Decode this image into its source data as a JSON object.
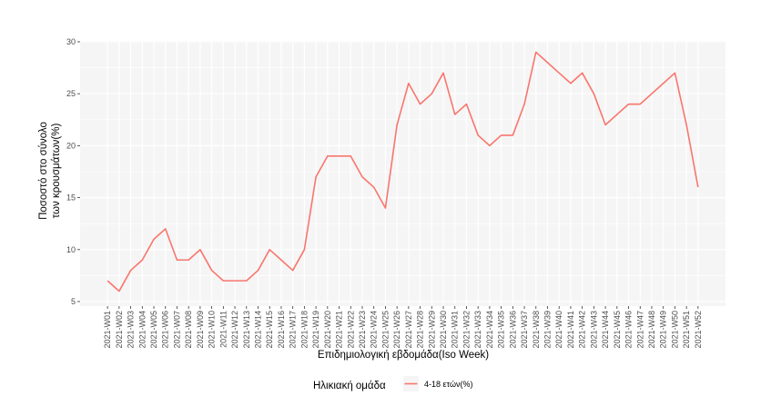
{
  "chart_data": {
    "type": "line",
    "title": "",
    "xlabel": "Επιδημιολογική εβδομάδα(Iso Week)",
    "ylabel_lines": [
      "Ποσοστό στο σύνολο",
      "των κρουσμάτων(%)"
    ],
    "ylim": [
      5,
      30
    ],
    "yticks": [
      5,
      10,
      15,
      20,
      25,
      30
    ],
    "grid": true,
    "legend": {
      "title": "Ηλικιακή ομάδα",
      "position": "bottom"
    },
    "colors": {
      "panel": "#f5f5f5",
      "grid_major": "#ffffff",
      "series": "#f8766d"
    },
    "categories": [
      "2021-W01",
      "2021-W02",
      "2021-W03",
      "2021-W04",
      "2021-W05",
      "2021-W06",
      "2021-W07",
      "2021-W08",
      "2021-W09",
      "2021-W10",
      "2021-W11",
      "2021-W12",
      "2021-W13",
      "2021-W14",
      "2021-W15",
      "2021-W16",
      "2021-W17",
      "2021-W18",
      "2021-W19",
      "2021-W20",
      "2021-W21",
      "2021-W22",
      "2021-W23",
      "2021-W24",
      "2021-W25",
      "2021-W26",
      "2021-W27",
      "2021-W28",
      "2021-W29",
      "2021-W30",
      "2021-W31",
      "2021-W32",
      "2021-W33",
      "2021-W34",
      "2021-W35",
      "2021-W36",
      "2021-W37",
      "2021-W38",
      "2021-W39",
      "2021-W40",
      "2021-W41",
      "2021-W42",
      "2021-W43",
      "2021-W44",
      "2021-W45",
      "2021-W46",
      "2021-W47",
      "2021-W48",
      "2021-W49",
      "2021-W50",
      "2021-W51",
      "2021-W52"
    ],
    "series": [
      {
        "name": "4-18 ετών(%)",
        "values": [
          7,
          6,
          8,
          9,
          11,
          12,
          9,
          9,
          10,
          8,
          7,
          7,
          7,
          8,
          10,
          9,
          8,
          10,
          17,
          19,
          19,
          19,
          17,
          16,
          14,
          22,
          26,
          24,
          25,
          27,
          23,
          24,
          21,
          20,
          21,
          21,
          24,
          29,
          28,
          27,
          26,
          27,
          25,
          22,
          23,
          24,
          24,
          25,
          26,
          27,
          22,
          16
        ]
      }
    ]
  }
}
